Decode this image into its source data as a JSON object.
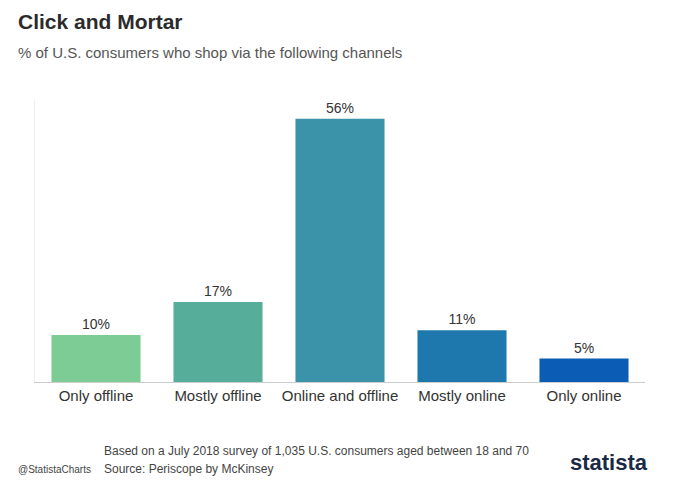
{
  "chart_data": {
    "type": "bar",
    "title": "Click and Mortar",
    "subtitle": "% of U.S. consumers who shop via the following channels",
    "categories": [
      "Only offline",
      "Mostly offline",
      "Online and offline",
      "Mostly online",
      "Only online"
    ],
    "values": [
      10,
      17,
      56,
      11,
      5
    ],
    "value_labels": [
      "10%",
      "17%",
      "56%",
      "11%",
      "5%"
    ],
    "colors": [
      "#7dcb95",
      "#56ae9a",
      "#3a93a8",
      "#1f78ad",
      "#0a5cb5"
    ],
    "ylim": [
      0,
      60
    ],
    "yticks": [],
    "grid": false,
    "data_labels": true,
    "tick_labels": "x",
    "note": "Based on a July 2018 survey of 1,035 U.S. consumers aged between 18 and 70",
    "source": "Source: Periscope by McKinsey",
    "credit": "@StatistaCharts",
    "logo": "statista"
  }
}
